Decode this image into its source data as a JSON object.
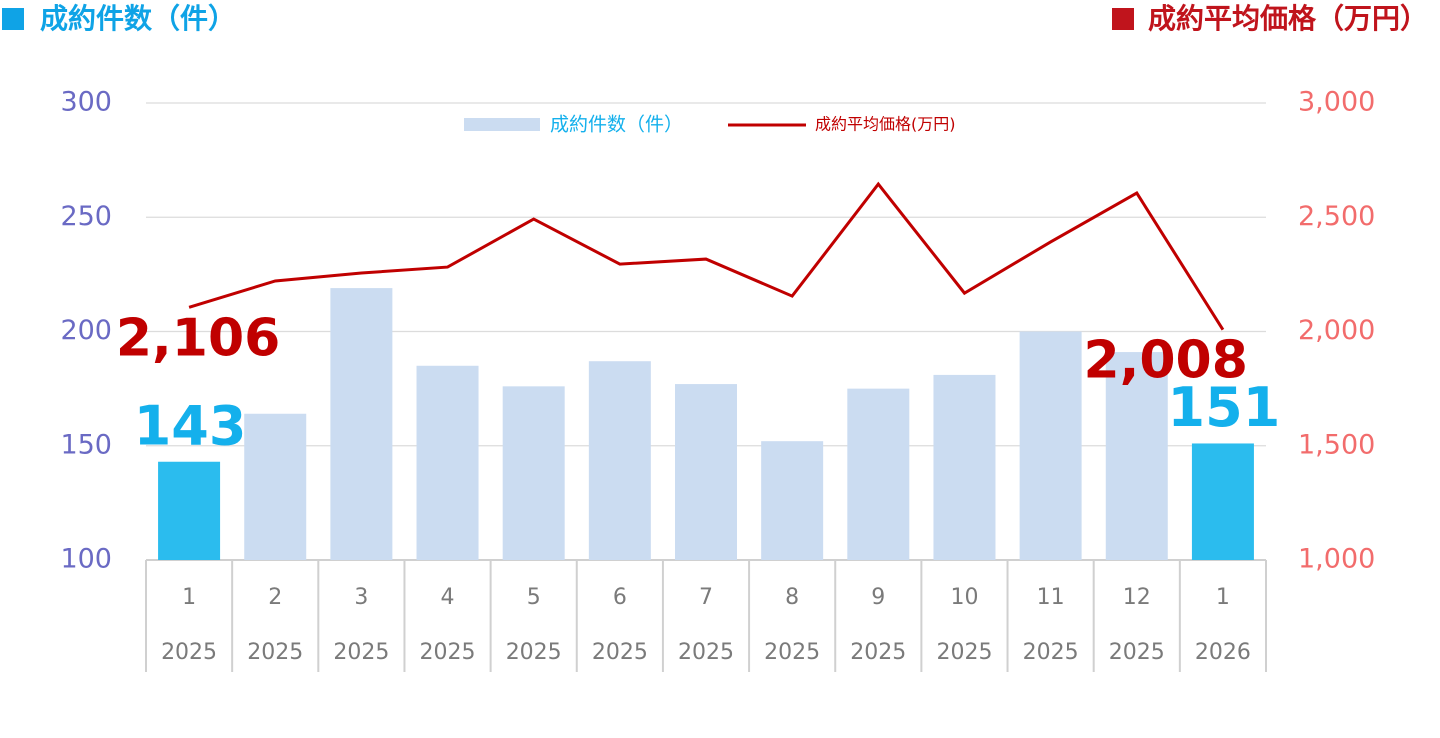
{
  "chart_data": {
    "type": "combo",
    "y_label": "成約件数（件）",
    "y_label_color": "#0fa3e6",
    "y2_label": "成約平均価格（万円）",
    "y2_label_color": "#c0141c",
    "categories": [
      "1",
      "2",
      "3",
      "4",
      "5",
      "6",
      "7",
      "8",
      "9",
      "10",
      "11",
      "12",
      "1"
    ],
    "category_years": [
      "2025",
      "2025",
      "2025",
      "2025",
      "2025",
      "2025",
      "2025",
      "2025",
      "2025",
      "2025",
      "2025",
      "2025",
      "2026"
    ],
    "series": [
      {
        "name": "成約件数（件）",
        "type": "bar",
        "color": "#cbdcf1",
        "highlight_color": "#2bbcee",
        "label_color": "#14b0ec",
        "values": [
          143,
          164,
          219,
          185,
          176,
          187,
          177,
          152,
          175,
          181,
          200,
          191,
          151
        ],
        "value_labels": [
          "143",
          null,
          null,
          null,
          null,
          null,
          null,
          null,
          null,
          null,
          null,
          null,
          "151"
        ]
      },
      {
        "name": "成約平均価格(万円)",
        "type": "line",
        "axis": "y2",
        "color": "#c00000",
        "label_color": "#c00000",
        "values": [
          2106,
          2221,
          2256,
          2282,
          2492,
          2295,
          2317,
          2155,
          2645,
          2168,
          2392,
          2606,
          2008
        ],
        "value_labels": [
          "2,106",
          null,
          null,
          null,
          null,
          null,
          null,
          null,
          null,
          null,
          null,
          null,
          "2,008"
        ]
      }
    ],
    "highlight": [
      0,
      12
    ],
    "ylim": [
      100,
      300
    ],
    "yticks": [
      100,
      150,
      200,
      250,
      300
    ],
    "ytick_color": "#6a6ac4",
    "y2lim": [
      1000,
      3000
    ],
    "y2ticks": [
      {
        "value": 1000,
        "label": "1,000"
      },
      {
        "value": 1500,
        "label": "1,500"
      },
      {
        "value": 2000,
        "label": "2,000"
      },
      {
        "value": 2500,
        "label": "2,500"
      },
      {
        "value": 3000,
        "label": "3,000"
      }
    ],
    "y2tick_color": "#f26c6c",
    "grid": true
  }
}
